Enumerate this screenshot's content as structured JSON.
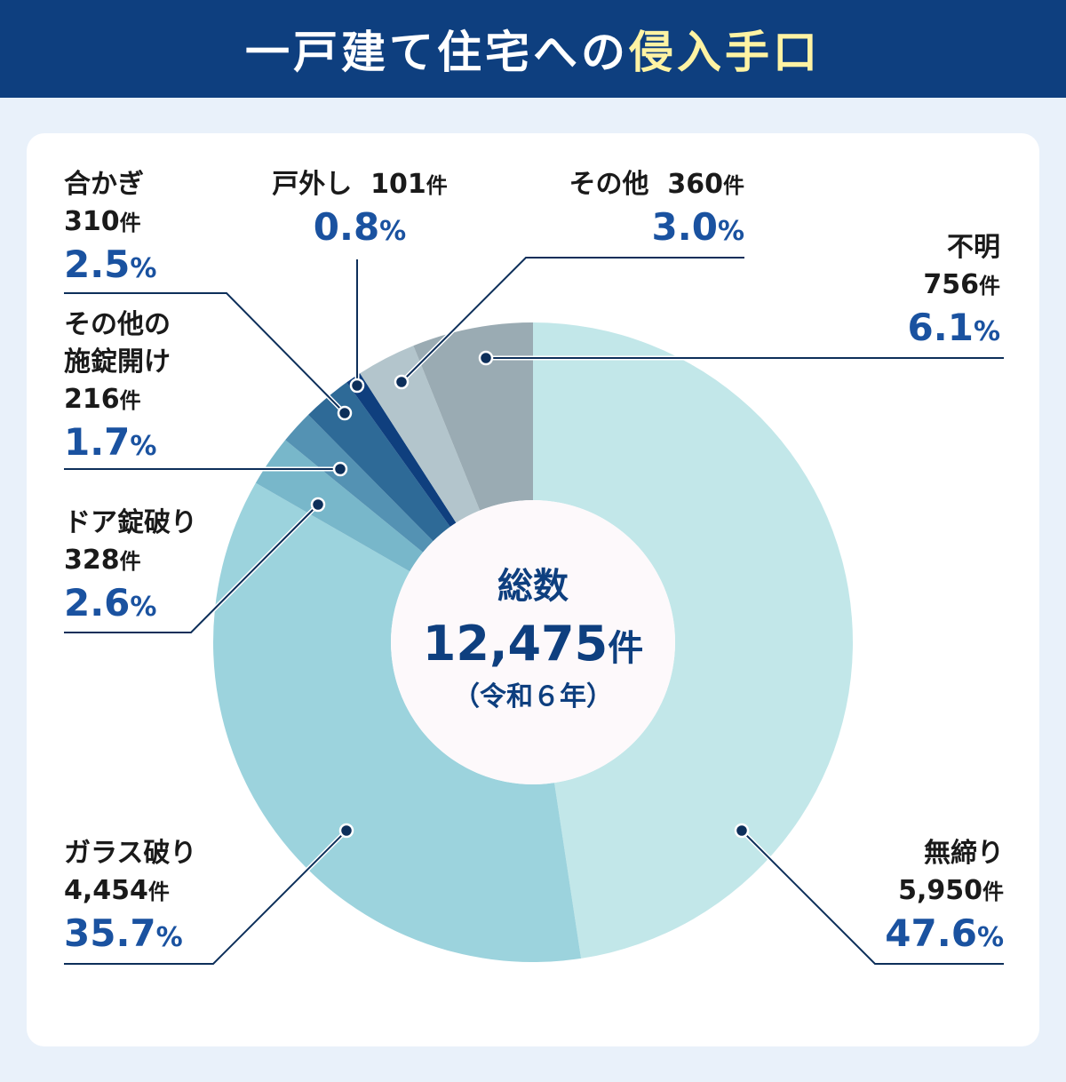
{
  "title": {
    "main": "一戸建て住宅への",
    "highlight": "侵入手口"
  },
  "center": {
    "label": "総数",
    "total": "12,475",
    "unit": "件",
    "era": "（令和６年）"
  },
  "chart_data": {
    "type": "pie",
    "donut": true,
    "title": "一戸建て住宅への侵入手口",
    "total": 12475,
    "slices": [
      {
        "name": "無締り",
        "count": "5,950",
        "value": 47.6,
        "color": "#c2e7e9"
      },
      {
        "name": "ガラス破り",
        "count": "4,454",
        "value": 35.7,
        "color": "#9cd3dd"
      },
      {
        "name": "ドア錠破り",
        "count": "328",
        "value": 2.6,
        "color": "#78b7ca"
      },
      {
        "name": "その他の施錠開け",
        "count": "216",
        "value": 1.7,
        "color": "#5492b3"
      },
      {
        "name": "合かぎ",
        "count": "310",
        "value": 2.5,
        "color": "#2e6a97"
      },
      {
        "name": "戸外し",
        "count": "101",
        "value": 0.8,
        "color": "#0f3f7e"
      },
      {
        "name": "その他",
        "count": "360",
        "value": 3.0,
        "color": "#b3c5cc"
      },
      {
        "name": "不明",
        "count": "756",
        "value": 6.1,
        "color": "#9aabb3"
      }
    ],
    "unit": "件",
    "percent_sign": "%",
    "start": "top",
    "direction": "clockwise"
  }
}
